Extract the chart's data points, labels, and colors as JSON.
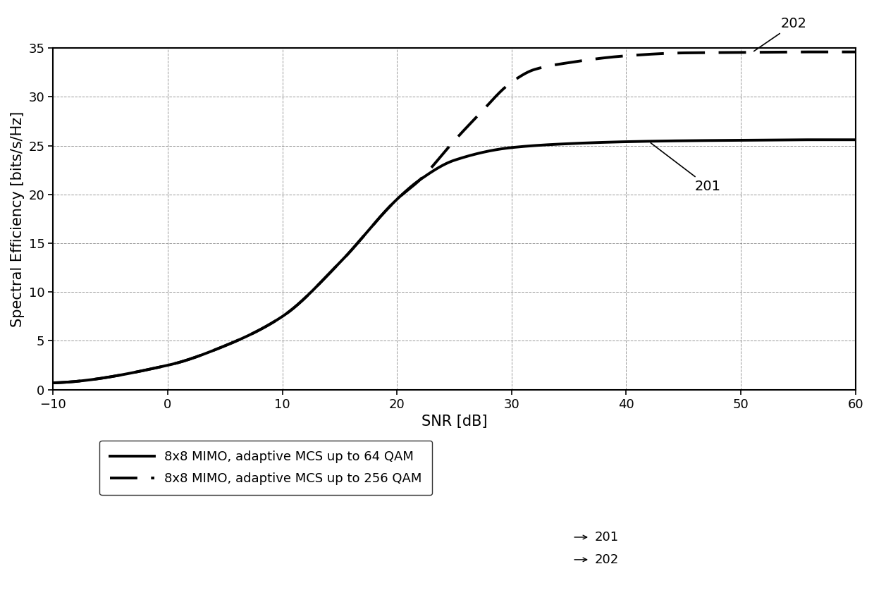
{
  "xlabel": "SNR [dB]",
  "ylabel": "Spectral Efficiency [bits/s/Hz]",
  "xlim": [
    -10,
    60
  ],
  "ylim": [
    0,
    35
  ],
  "xticks": [
    -10,
    0,
    10,
    20,
    30,
    40,
    50,
    60
  ],
  "yticks": [
    0,
    5,
    10,
    15,
    20,
    25,
    30,
    35
  ],
  "background_color": "#ffffff",
  "grid_color": "#555555",
  "line_color": "#000000",
  "legend_label_64qam": "8x8 MIMO, adaptive MCS up to 64 QAM",
  "legend_label_256qam": "8x8 MIMO, adaptive MCS up to 256 QAM",
  "annotation_201": "201",
  "annotation_202": "202",
  "figsize": [
    12.4,
    8.61
  ],
  "dpi": 100,
  "key_points_64qam": [
    [
      -10,
      0.7
    ],
    [
      0,
      2.5
    ],
    [
      5,
      4.5
    ],
    [
      10,
      7.5
    ],
    [
      15,
      13.0
    ],
    [
      20,
      19.5
    ],
    [
      22,
      21.5
    ],
    [
      25,
      23.5
    ],
    [
      30,
      24.8
    ],
    [
      35,
      25.2
    ],
    [
      40,
      25.4
    ],
    [
      45,
      25.5
    ],
    [
      50,
      25.55
    ],
    [
      55,
      25.6
    ],
    [
      60,
      25.6
    ]
  ],
  "key_points_256qam": [
    [
      -10,
      0.7
    ],
    [
      0,
      2.5
    ],
    [
      5,
      4.5
    ],
    [
      10,
      7.5
    ],
    [
      15,
      13.0
    ],
    [
      20,
      19.5
    ],
    [
      22,
      21.5
    ],
    [
      25,
      25.5
    ],
    [
      27,
      28.0
    ],
    [
      30,
      31.5
    ],
    [
      32,
      32.8
    ],
    [
      35,
      33.5
    ],
    [
      40,
      34.2
    ],
    [
      45,
      34.5
    ],
    [
      50,
      34.55
    ],
    [
      55,
      34.6
    ],
    [
      60,
      34.6
    ]
  ]
}
